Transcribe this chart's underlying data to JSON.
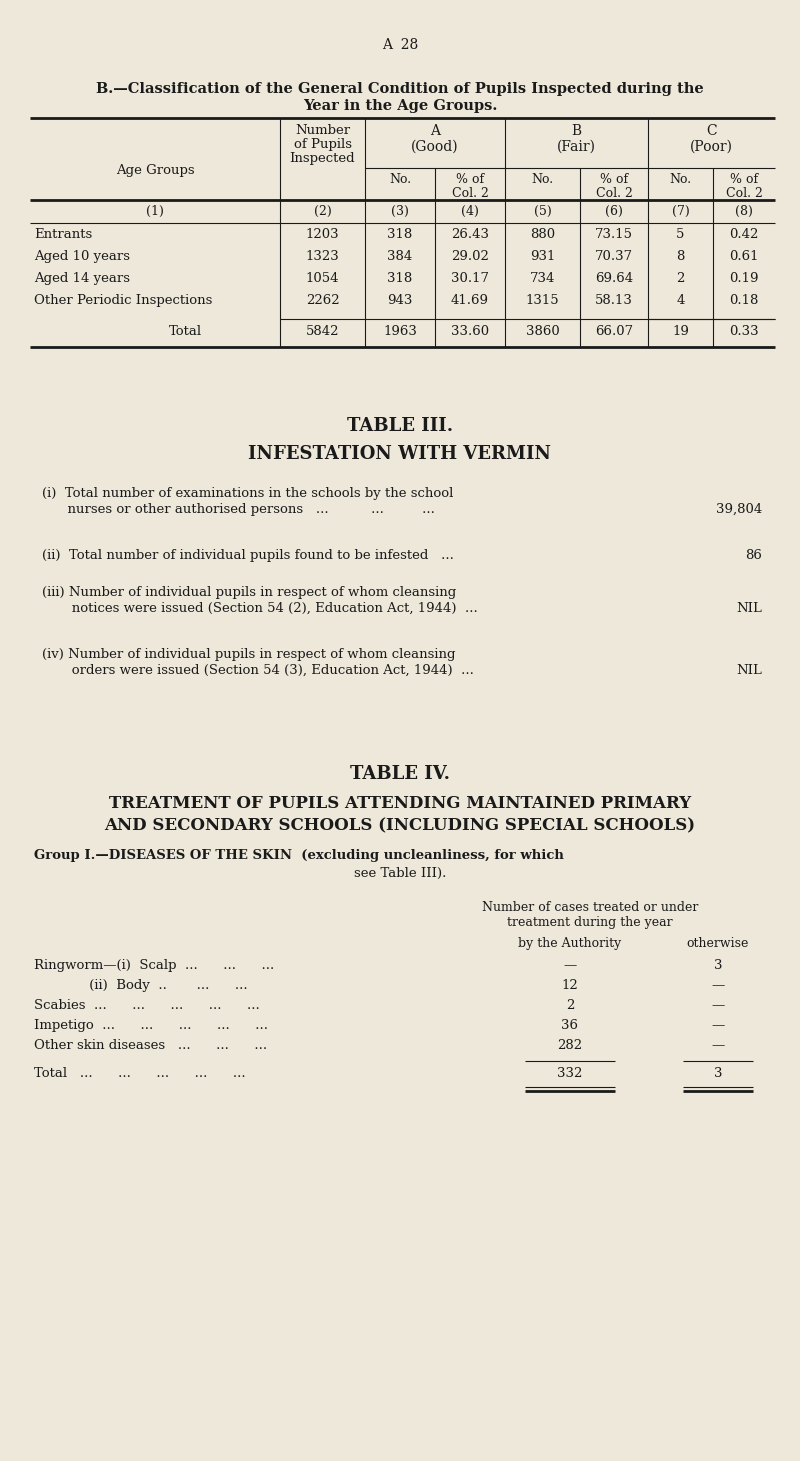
{
  "bg_color": "#ede8da",
  "text_color": "#1a1a1a",
  "page_label": "A  28",
  "section_b_title1": "B.—Classification of the General Condition of Pupils Inspected during the",
  "section_b_title2": "Year in the Age Groups.",
  "table_b_rows": [
    [
      "Entrants",
      "1203",
      "318",
      "26.43",
      "880",
      "73.15",
      "5",
      "0.42"
    ],
    [
      "Aged 10 years",
      "1323",
      "384",
      "29.02",
      "931",
      "70.37",
      "8",
      "0.61"
    ],
    [
      "Aged 14 years",
      "1054",
      "318",
      "30.17",
      "734",
      "69.64",
      "2",
      "0.19"
    ],
    [
      "Other Periodic Inspections",
      "2262",
      "943",
      "41.69",
      "1315",
      "58.13",
      "4",
      "0.18"
    ]
  ],
  "table_b_total": [
    "Total",
    "5842",
    "1963",
    "33.60",
    "3860",
    "66.07",
    "19",
    "0.33"
  ],
  "table3_title": "TABLE III.",
  "table3_subtitle": "INFESTATION WITH VERMIN",
  "table3_items": [
    {
      "line1": "(i)  Total number of examinations in the schools by the school",
      "line2": "      nurses or other authorised persons   ...          ...         ...",
      "value": "39,804",
      "two_line": true
    },
    {
      "line1": "(ii)  Total number of individual pupils found to be infested   ...",
      "line2": "",
      "value": "86",
      "two_line": false
    },
    {
      "line1": "(iii) Number of individual pupils in respect of whom cleansing",
      "line2": "       notices were issued (Section 54 (2), Education Act, 1944)  ...",
      "value": "NIL",
      "two_line": true
    },
    {
      "line1": "(iv) Number of individual pupils in respect of whom cleansing",
      "line2": "       orders were issued (Section 54 (3), Education Act, 1944)  ...",
      "value": "NIL",
      "two_line": true
    }
  ],
  "table4_title": "TABLE IV.",
  "table4_subtitle1": "TREATMENT OF PUPILS ATTENDING MAINTAINED PRIMARY",
  "table4_subtitle2": "AND SECONDARY SCHOOLS (INCLUDING SPECIAL SCHOOLS)",
  "table4_group": "Group I.—DISEASES OF THE SKIN  (excluding uncleanliness, for which",
  "table4_group2": "see Table III).",
  "table4_col_header1": "Number of cases treated or under",
  "table4_col_header2": "treatment during the year",
  "table4_col_sub1": "by the Authority",
  "table4_col_sub2": "otherwise",
  "table4_rows": [
    {
      "label": "Ringworm—(i)  Scalp  ...      ...      ...",
      "auth": "—",
      "other": "3"
    },
    {
      "label": "             (ii)  Body  ..       ...      ...",
      "auth": "12",
      "other": "—"
    },
    {
      "label": "Scabies  ...      ...      ...      ...      ...",
      "auth": "2",
      "other": "—"
    },
    {
      "label": "Impetigo  ...      ...      ...      ...      ...",
      "auth": "36",
      "other": "—"
    },
    {
      "label": "Other skin diseases   ...      ...      ...",
      "auth": "282",
      "other": "—"
    }
  ],
  "table4_total": {
    "label": "Total   ...      ...      ...      ...      ...",
    "auth": "332",
    "other": "3"
  }
}
